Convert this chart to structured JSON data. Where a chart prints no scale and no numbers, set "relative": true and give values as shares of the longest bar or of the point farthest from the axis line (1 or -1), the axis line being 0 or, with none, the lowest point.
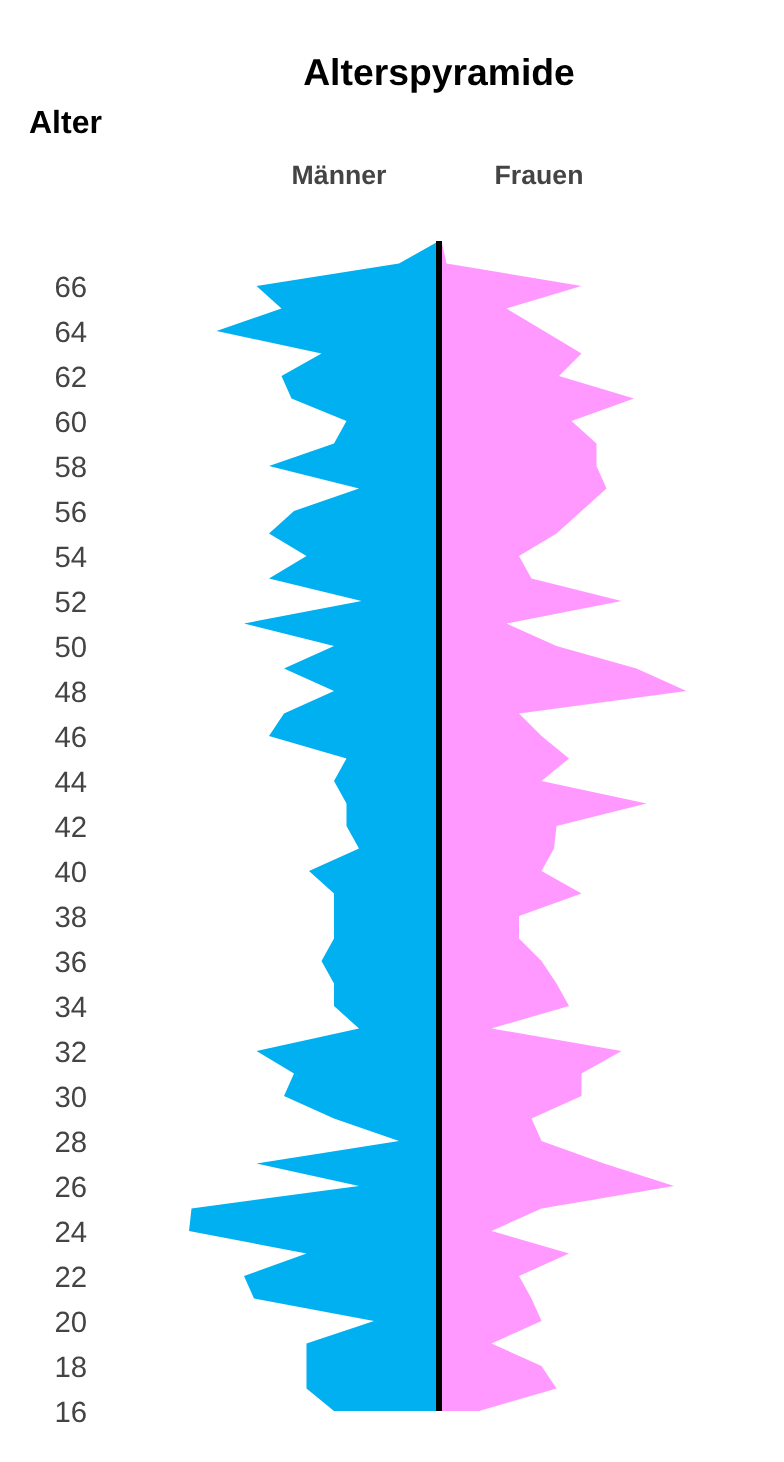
{
  "chart_data": {
    "type": "area",
    "orientation": "horizontal",
    "relative": true,
    "title": "Alterspyramide",
    "ylabel": "Alter",
    "categories": [
      null,
      null,
      "66",
      null,
      "64",
      null,
      "62",
      null,
      "60",
      null,
      "58",
      null,
      "56",
      null,
      "54",
      null,
      "52",
      null,
      "50",
      null,
      "48",
      null,
      "46",
      null,
      "44",
      null,
      "42",
      null,
      "40",
      null,
      "38",
      null,
      "36",
      null,
      "34",
      null,
      "32",
      null,
      "30",
      null,
      "28",
      null,
      "26",
      null,
      "24",
      null,
      "22",
      null,
      "20",
      null,
      "18",
      null,
      "16"
    ],
    "series": [
      {
        "name": "Männer",
        "color": "#00b0f0",
        "values": [
          0,
          -0.16,
          -0.73,
          -0.63,
          -0.89,
          -0.47,
          -0.63,
          -0.59,
          -0.37,
          -0.42,
          -0.68,
          -0.32,
          -0.58,
          -0.68,
          -0.53,
          -0.68,
          -0.31,
          -0.78,
          -0.42,
          -0.62,
          -0.42,
          -0.62,
          -0.68,
          -0.37,
          -0.42,
          -0.37,
          -0.37,
          -0.32,
          -0.52,
          -0.42,
          -0.42,
          -0.42,
          -0.47,
          -0.42,
          -0.42,
          -0.32,
          -0.73,
          -0.58,
          -0.62,
          -0.42,
          -0.16,
          -0.73,
          -0.32,
          -0.99,
          -1.0,
          -0.53,
          -0.78,
          -0.74,
          -0.26,
          -0.53,
          -0.53,
          -0.53,
          -0.42
        ]
      },
      {
        "name": "Frauen",
        "color": "#ff99ff",
        "values": [
          0.01,
          0.03,
          0.57,
          0.27,
          0.42,
          0.57,
          0.48,
          0.78,
          0.53,
          0.63,
          0.63,
          0.67,
          0.57,
          0.47,
          0.32,
          0.37,
          0.73,
          0.27,
          0.47,
          0.79,
          0.99,
          0.32,
          0.41,
          0.52,
          0.41,
          0.83,
          0.47,
          0.46,
          0.41,
          0.57,
          0.32,
          0.32,
          0.41,
          0.47,
          0.52,
          0.21,
          0.73,
          0.57,
          0.57,
          0.37,
          0.41,
          0.66,
          0.94,
          0.41,
          0.21,
          0.52,
          0.32,
          0.37,
          0.41,
          0.21,
          0.41,
          0.47,
          0.16
        ]
      }
    ]
  }
}
